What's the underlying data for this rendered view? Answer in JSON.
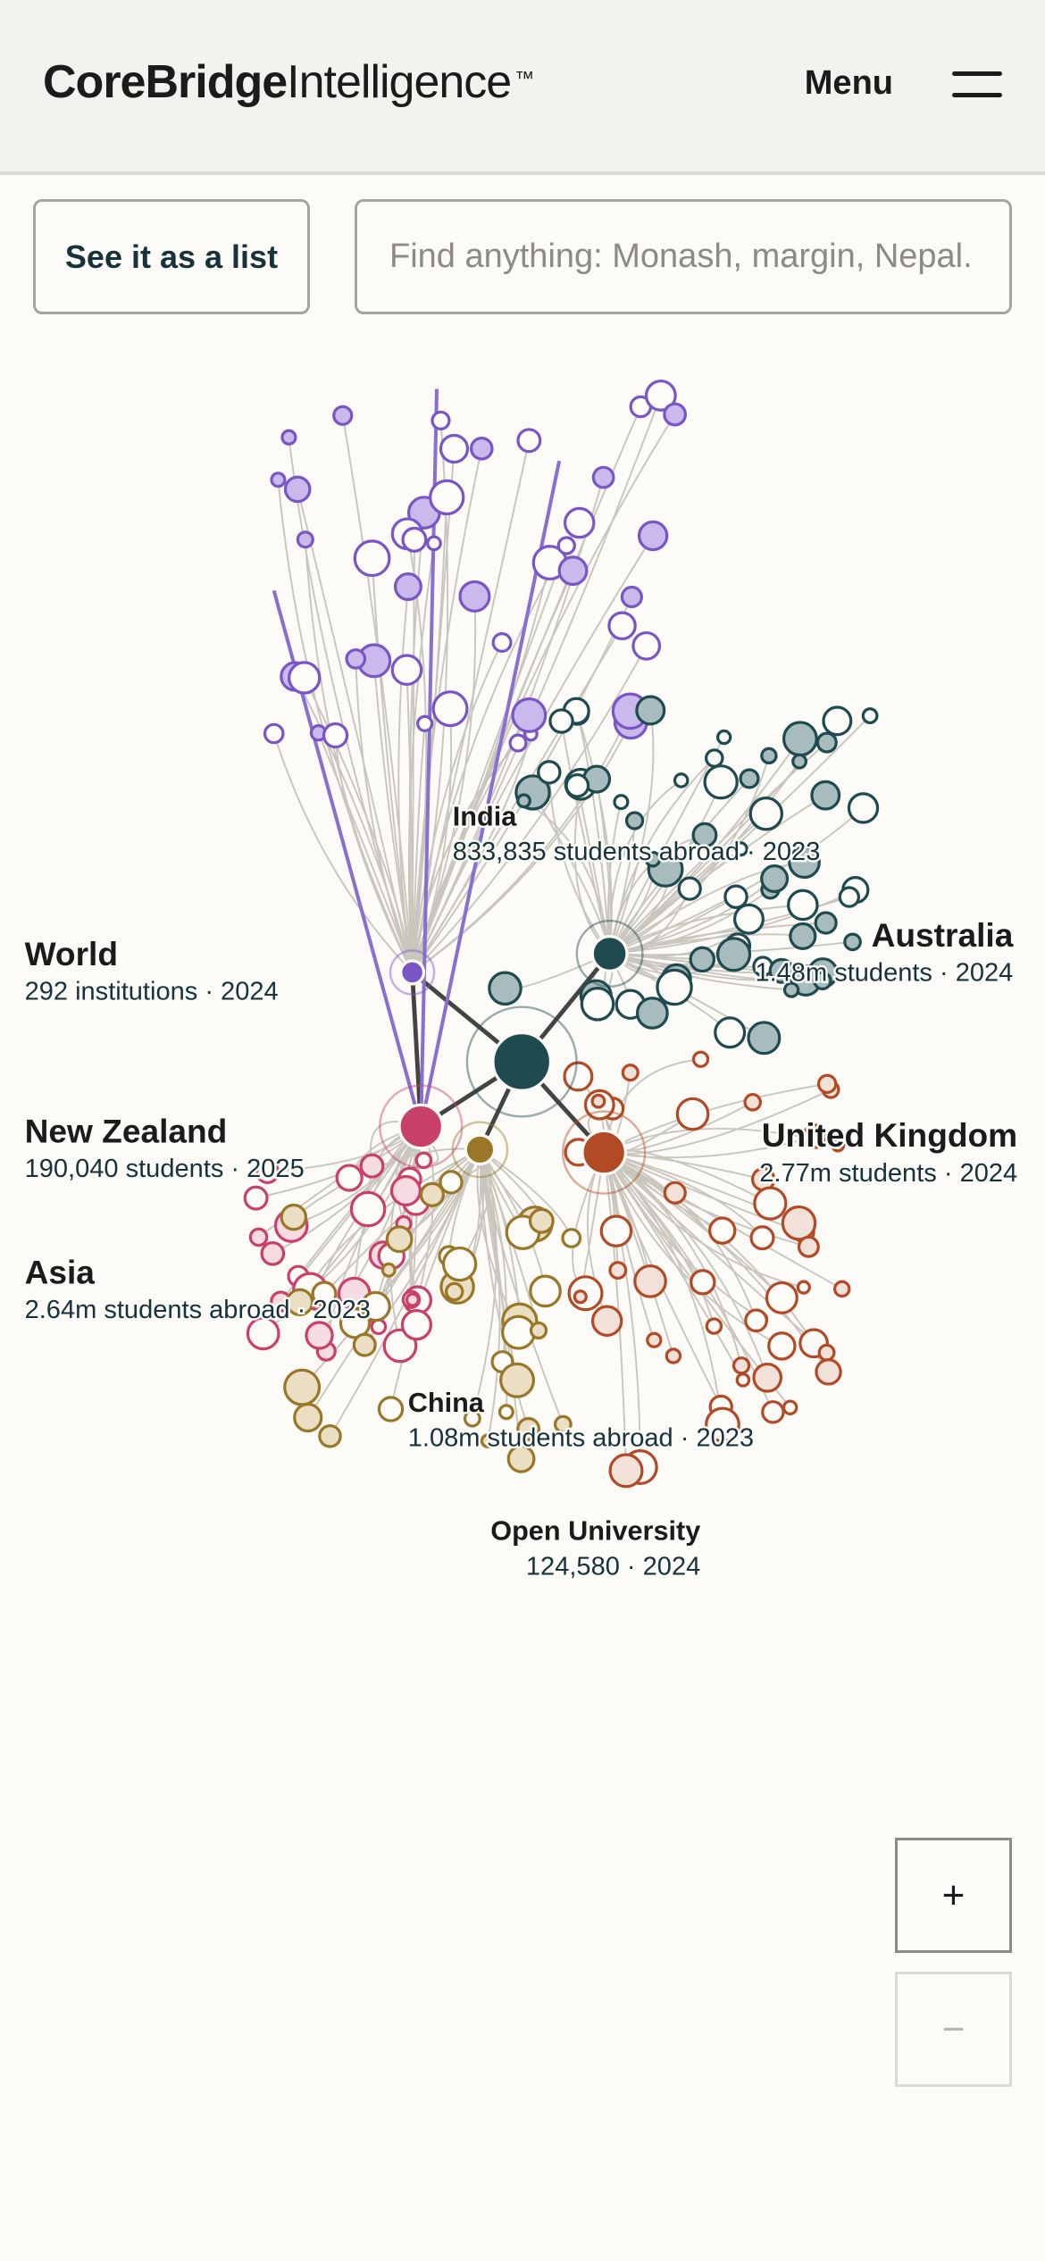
{
  "header": {
    "brand_bold": "CoreBridge",
    "brand_light": "Intelligence",
    "trademark": "™",
    "menu": "Menu"
  },
  "toolbar": {
    "list_button": "See it as a list",
    "search_placeholder": "Find anything: Monash, margin, Nepal."
  },
  "graph": {
    "labels": [
      {
        "title": "India",
        "detail": "833,835 students abroad · 2023"
      },
      {
        "title": "World",
        "detail": "292 institutions · 2024"
      },
      {
        "title": "Australia",
        "detail": "1.48m students · 2024"
      },
      {
        "title": "New Zealand",
        "detail": "190,040 students · 2025"
      },
      {
        "title": "United Kingdom",
        "detail": "2.77m students · 2024"
      },
      {
        "title": "Asia",
        "detail": "2.64m students abroad · 2023"
      },
      {
        "title": "China",
        "detail": "1.08m students abroad · 2023"
      },
      {
        "title": "Open University",
        "detail": "124,580 · 2024"
      }
    ]
  },
  "zoom": {
    "in": "+",
    "out": "−"
  }
}
